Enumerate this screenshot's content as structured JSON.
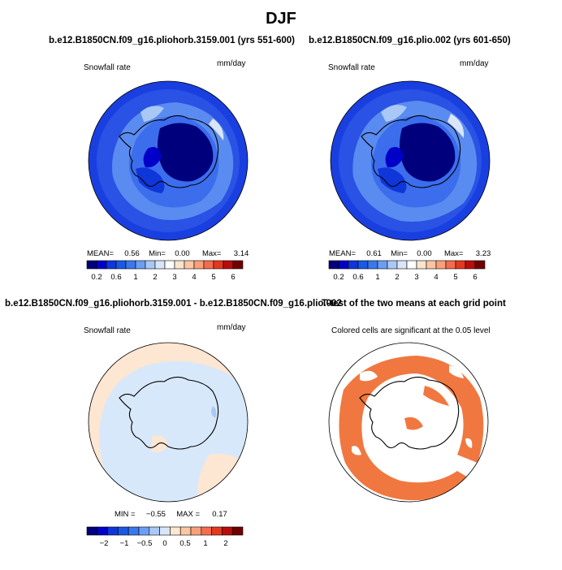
{
  "main_title": "DJF",
  "colors": {
    "snow_scale": [
      "#00007d",
      "#0000c8",
      "#0f36d9",
      "#1a59e6",
      "#3b78ee",
      "#6b9ef3",
      "#a9c8f6",
      "#d9e6fa",
      "#ffffff",
      "#fde4cf",
      "#fbc6a4",
      "#f8a07a",
      "#f36c4d",
      "#e4381e",
      "#bb0c0c",
      "#6f0000"
    ],
    "diff_scale": [
      "#00007d",
      "#0000c8",
      "#0f36d9",
      "#1a59e6",
      "#3b78ee",
      "#6b9ef3",
      "#a9c8f6",
      "#d9e6fa",
      "#fde6d2",
      "#fbc6a4",
      "#f8a07a",
      "#f36c4d",
      "#e4381e",
      "#bb0c0c",
      "#6f0000"
    ],
    "significance": "#f07840",
    "diff_background": "#d8e8fb",
    "diff_positive": "#fde6d2"
  },
  "panels": [
    {
      "title": "b.e12.B1850CN.f09_g16.pliohorb.3159.001 (yrs 551-600)",
      "left_label": "Snowfall rate",
      "right_label": "mm/day",
      "stats": {
        "mean_label": "MEAN=",
        "mean": "0.56",
        "min_label": "Min=",
        "min": "0.00",
        "max_label": "Max=",
        "max": "3.14"
      },
      "colorbar_ticks": [
        "0.2",
        "0.6",
        "1",
        "2",
        "3",
        "4",
        "5",
        "6"
      ]
    },
    {
      "title": "b.e12.B1850CN.f09_g16.plio.002 (yrs 601-650)",
      "left_label": "Snowfall rate",
      "right_label": "mm/day",
      "stats": {
        "mean_label": "MEAN=",
        "mean": "0.61",
        "min_label": "Min=",
        "min": "0.00",
        "max_label": "Max=",
        "max": "3.23"
      },
      "colorbar_ticks": [
        "0.2",
        "0.6",
        "1",
        "2",
        "3",
        "4",
        "5",
        "6"
      ]
    },
    {
      "title": "b.e12.B1850CN.f09_g16.pliohorb.3159.001 - b.e12.B1850CN.f09_g16.plio.002",
      "left_label": "Snowfall rate",
      "right_label": "mm/day",
      "stats": {
        "min_label": "MIN =",
        "min": "−0.55",
        "max_label": "MAX =",
        "max": "0.17"
      },
      "colorbar_ticks": [
        "−2",
        "−1",
        "−0.5",
        "0",
        "0.5",
        "1",
        "2"
      ]
    },
    {
      "title": "T-test of the two means at each grid point",
      "label": "Colored cells are significant at the 0.05 level"
    }
  ],
  "chart_data": [
    {
      "type": "heatmap",
      "title": "b.e12.B1850CN.f09_g16.pliohorb.3159.001 (yrs 551-600)",
      "variable": "Snowfall rate",
      "units": "mm/day",
      "mean": 0.56,
      "min": 0.0,
      "max": 3.14,
      "colorbar_ticks": [
        0.2,
        0.6,
        1,
        2,
        3,
        4,
        5,
        6
      ]
    },
    {
      "type": "heatmap",
      "title": "b.e12.B1850CN.f09_g16.plio.002 (yrs 601-650)",
      "variable": "Snowfall rate",
      "units": "mm/day",
      "mean": 0.61,
      "min": 0.0,
      "max": 3.23,
      "colorbar_ticks": [
        0.2,
        0.6,
        1,
        2,
        3,
        4,
        5,
        6
      ]
    },
    {
      "type": "heatmap",
      "title": "b.e12.B1850CN.f09_g16.pliohorb.3159.001 - b.e12.B1850CN.f09_g16.plio.002",
      "variable": "Snowfall rate",
      "units": "mm/day",
      "min": -0.55,
      "max": 0.17,
      "colorbar_ticks": [
        -2,
        -1,
        -0.5,
        0,
        0.5,
        1,
        2
      ]
    },
    {
      "type": "heatmap",
      "title": "T-test of the two means at each grid point",
      "annotation": "Colored cells are significant at the 0.05 level"
    }
  ]
}
